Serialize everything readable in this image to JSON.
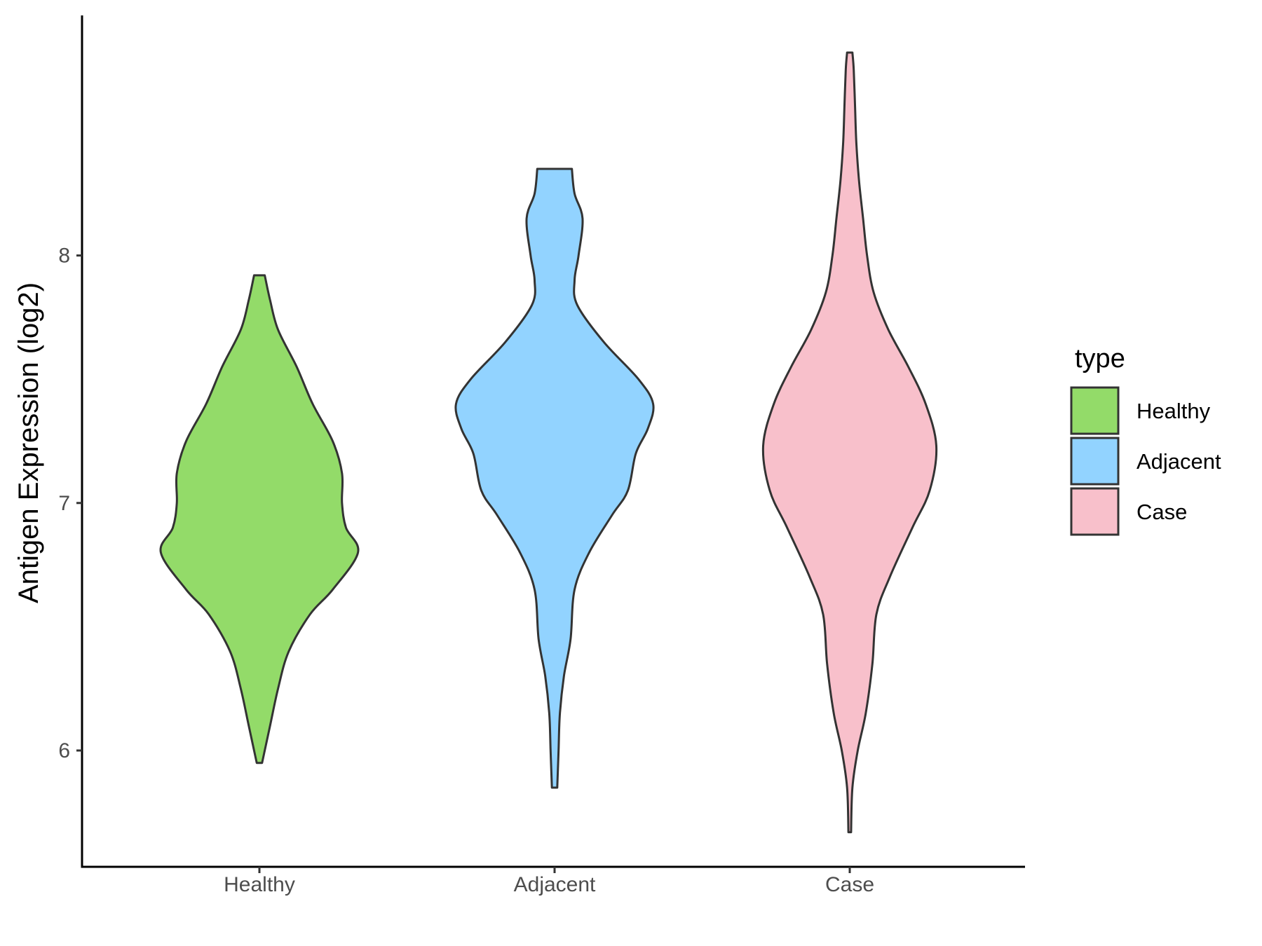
{
  "chart_data": {
    "type": "violin",
    "xlabel": "",
    "ylabel": "Antigen Expression (log2)",
    "ylim": [
      5.53,
      8.97
    ],
    "yticks": [
      6,
      7,
      8
    ],
    "categories": [
      "Healthy",
      "Adjacent",
      "Case"
    ],
    "legend": {
      "title": "type",
      "position": "right",
      "entries": [
        "Healthy",
        "Adjacent",
        "Case"
      ]
    },
    "grid": false,
    "series": [
      {
        "name": "Healthy",
        "color": "#93DB69",
        "min": 5.95,
        "max": 7.92,
        "density_profile": [
          [
            5.95,
            0.02
          ],
          [
            6.1,
            0.08
          ],
          [
            6.25,
            0.14
          ],
          [
            6.4,
            0.22
          ],
          [
            6.55,
            0.38
          ],
          [
            6.65,
            0.55
          ],
          [
            6.8,
            0.74
          ],
          [
            6.9,
            0.65
          ],
          [
            7.0,
            0.62
          ],
          [
            7.12,
            0.62
          ],
          [
            7.25,
            0.55
          ],
          [
            7.4,
            0.4
          ],
          [
            7.55,
            0.28
          ],
          [
            7.7,
            0.14
          ],
          [
            7.82,
            0.08
          ],
          [
            7.92,
            0.04
          ]
        ]
      },
      {
        "name": "Adjacent",
        "color": "#92D3FF",
        "min": 5.85,
        "max": 8.35,
        "density_profile": [
          [
            5.85,
            0.02
          ],
          [
            6.0,
            0.03
          ],
          [
            6.15,
            0.04
          ],
          [
            6.3,
            0.07
          ],
          [
            6.45,
            0.12
          ],
          [
            6.65,
            0.15
          ],
          [
            6.8,
            0.26
          ],
          [
            6.95,
            0.43
          ],
          [
            7.05,
            0.55
          ],
          [
            7.2,
            0.61
          ],
          [
            7.3,
            0.7
          ],
          [
            7.4,
            0.74
          ],
          [
            7.5,
            0.63
          ],
          [
            7.65,
            0.37
          ],
          [
            7.8,
            0.17
          ],
          [
            7.9,
            0.15
          ],
          [
            8.0,
            0.18
          ],
          [
            8.15,
            0.21
          ],
          [
            8.25,
            0.15
          ],
          [
            8.35,
            0.13
          ]
        ]
      },
      {
        "name": "Case",
        "color": "#F8C0CB",
        "min": 5.67,
        "max": 8.82,
        "density_profile": [
          [
            5.67,
            0.01
          ],
          [
            5.85,
            0.02
          ],
          [
            6.0,
            0.06
          ],
          [
            6.15,
            0.12
          ],
          [
            6.35,
            0.17
          ],
          [
            6.55,
            0.2
          ],
          [
            6.7,
            0.3
          ],
          [
            6.9,
            0.47
          ],
          [
            7.05,
            0.6
          ],
          [
            7.23,
            0.65
          ],
          [
            7.4,
            0.57
          ],
          [
            7.55,
            0.44
          ],
          [
            7.7,
            0.29
          ],
          [
            7.85,
            0.18
          ],
          [
            8.0,
            0.13
          ],
          [
            8.15,
            0.1
          ],
          [
            8.3,
            0.07
          ],
          [
            8.45,
            0.05
          ],
          [
            8.6,
            0.04
          ],
          [
            8.75,
            0.03
          ],
          [
            8.82,
            0.02
          ]
        ]
      }
    ]
  }
}
